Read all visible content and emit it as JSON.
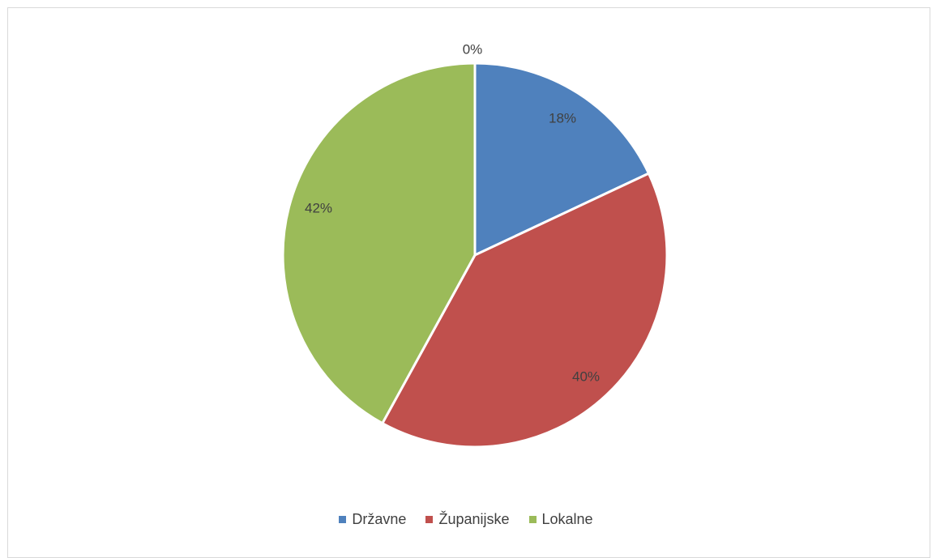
{
  "chart_data": {
    "type": "pie",
    "title": "",
    "categories": [
      "Državne",
      "Županijske",
      "Lokalne"
    ],
    "values": [
      18,
      40,
      42
    ],
    "data_labels": [
      "18%",
      "40%",
      "42%"
    ],
    "extra_label": "0%",
    "colors": [
      "#4f81bd",
      "#c0504d",
      "#9bbb59"
    ],
    "legend_position": "bottom"
  }
}
